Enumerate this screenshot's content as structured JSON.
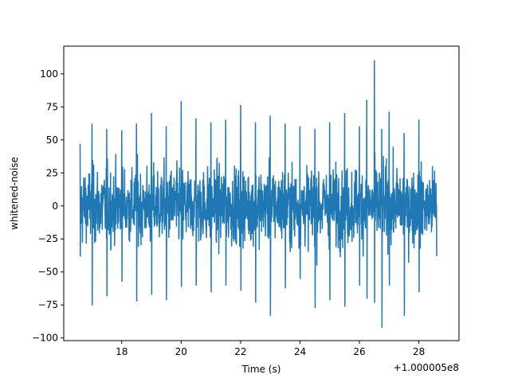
{
  "chart_data": {
    "type": "line",
    "title": "",
    "xlabel": "Time (s)",
    "ylabel": "whitened-noise",
    "x_offset_label": "+1.000005e8",
    "xlim": [
      16.05,
      29.35
    ],
    "ylim": [
      -102,
      121
    ],
    "x_ticks": [
      18,
      20,
      22,
      24,
      26,
      28
    ],
    "x_tick_labels": [
      "18",
      "20",
      "22",
      "24",
      "26",
      "28"
    ],
    "y_ticks": [
      -100,
      -75,
      -50,
      -25,
      0,
      25,
      50,
      75,
      100
    ],
    "y_tick_labels": [
      "−100",
      "−75",
      "−50",
      "−25",
      "0",
      "25",
      "50",
      "75",
      "100"
    ],
    "grid": false,
    "legend": "none",
    "series_color": "#1f77b4",
    "series": [
      {
        "x_start": 16.6,
        "x_end": 28.6,
        "envelope_x": [
          16.6,
          17.0,
          17.5,
          18.0,
          18.5,
          19.0,
          19.5,
          20.0,
          20.5,
          21.0,
          21.5,
          22.0,
          22.5,
          23.0,
          23.5,
          24.0,
          24.5,
          25.0,
          25.5,
          26.0,
          26.25,
          26.5,
          26.75,
          27.0,
          27.5,
          28.0,
          28.6
        ],
        "envelope_max": [
          47,
          62,
          58,
          57,
          62,
          70,
          60,
          79,
          66,
          63,
          65,
          76,
          63,
          68,
          62,
          60,
          58,
          63,
          70,
          60,
          80,
          110,
          58,
          71,
          55,
          65,
          47
        ],
        "envelope_min": [
          -38,
          -75,
          -68,
          -57,
          -72,
          -67,
          -71,
          -61,
          -60,
          -65,
          -60,
          -64,
          -73,
          -83,
          -62,
          -55,
          -77,
          -71,
          -76,
          -60,
          -70,
          -73,
          -92,
          -60,
          -83,
          -65,
          -38
        ],
        "typical_amplitude": 20,
        "points_drawn": 1500
      }
    ]
  }
}
